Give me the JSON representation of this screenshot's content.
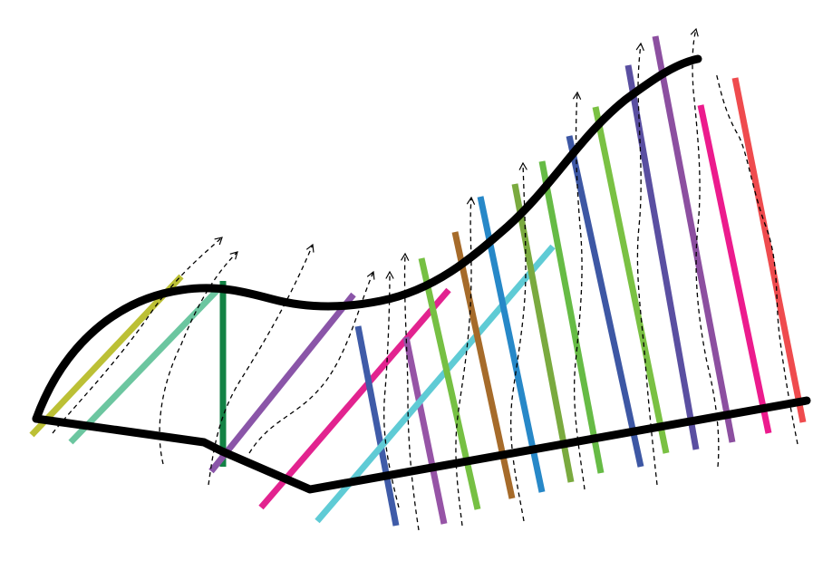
{
  "diagram": {
    "background": "#ffffff",
    "outline_color": "#000000",
    "arrow_color": "#000000",
    "stroke_colors": [
      "#bcc035",
      "#6cc6a0",
      "#138245",
      "#8a55a8",
      "#e2238f",
      "#3f5ba8",
      "#9654a6",
      "#5fcbd5",
      "#76c043",
      "#a66b2a",
      "#2788c8",
      "#7aaa3f",
      "#66bb45",
      "#3d57a4",
      "#7ac143",
      "#5a4fa1",
      "#8c4fa0",
      "#ec1b8d",
      "#ef4b4e"
    ]
  }
}
